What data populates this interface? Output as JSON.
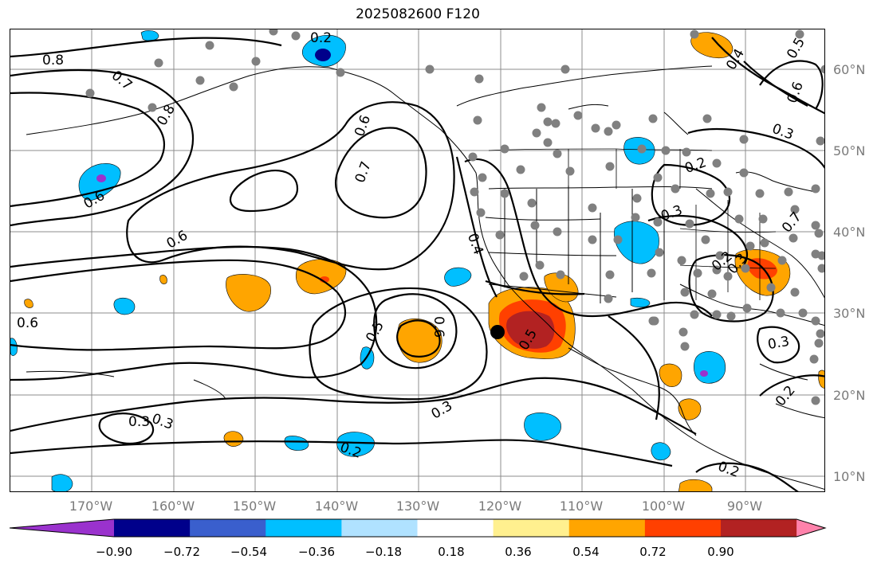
{
  "title": "2025082600 F120",
  "lat_labels": [
    "60°N",
    "50°N",
    "40°N",
    "30°N",
    "20°N",
    "10°N"
  ],
  "lon_labels": [
    "170°W",
    "160°W",
    "150°W",
    "140°W",
    "130°W",
    "120°W",
    "110°W",
    "100°W",
    "90°W"
  ],
  "colorbar": {
    "ticks": [
      "−0.90",
      "−0.72",
      "−0.54",
      "−0.36",
      "−0.18",
      "0.18",
      "0.36",
      "0.54",
      "0.72",
      "0.90"
    ],
    "colors": [
      "#9a32cd",
      "#00008b",
      "#3a5fcd",
      "#00bfff",
      "#b0e2ff",
      "#ffffff",
      "#fff08f",
      "#ffa500",
      "#ff4000",
      "#b22222",
      "#ff82ab"
    ]
  },
  "contour_labels": [
    "0.2",
    "0.8",
    "0.7",
    "0.8",
    "0.6",
    "0.6",
    "0.6",
    "0.7",
    "0.6",
    "0.4",
    "0.5",
    "0.5",
    "0.6",
    "0.3",
    "0.3",
    "0.2",
    "0.2",
    "0.3",
    "0.4",
    "0.5",
    "0.6",
    "0.3",
    "0.2",
    "0.3",
    "0.7",
    "0.3",
    "0.3",
    "0.2",
    "0.2"
  ],
  "map": {
    "land_color": "#ffffff",
    "grid_color": "#8c8c8c",
    "station_color": "#808080",
    "marker_color": "#000000",
    "projection": "equirectangular"
  }
}
